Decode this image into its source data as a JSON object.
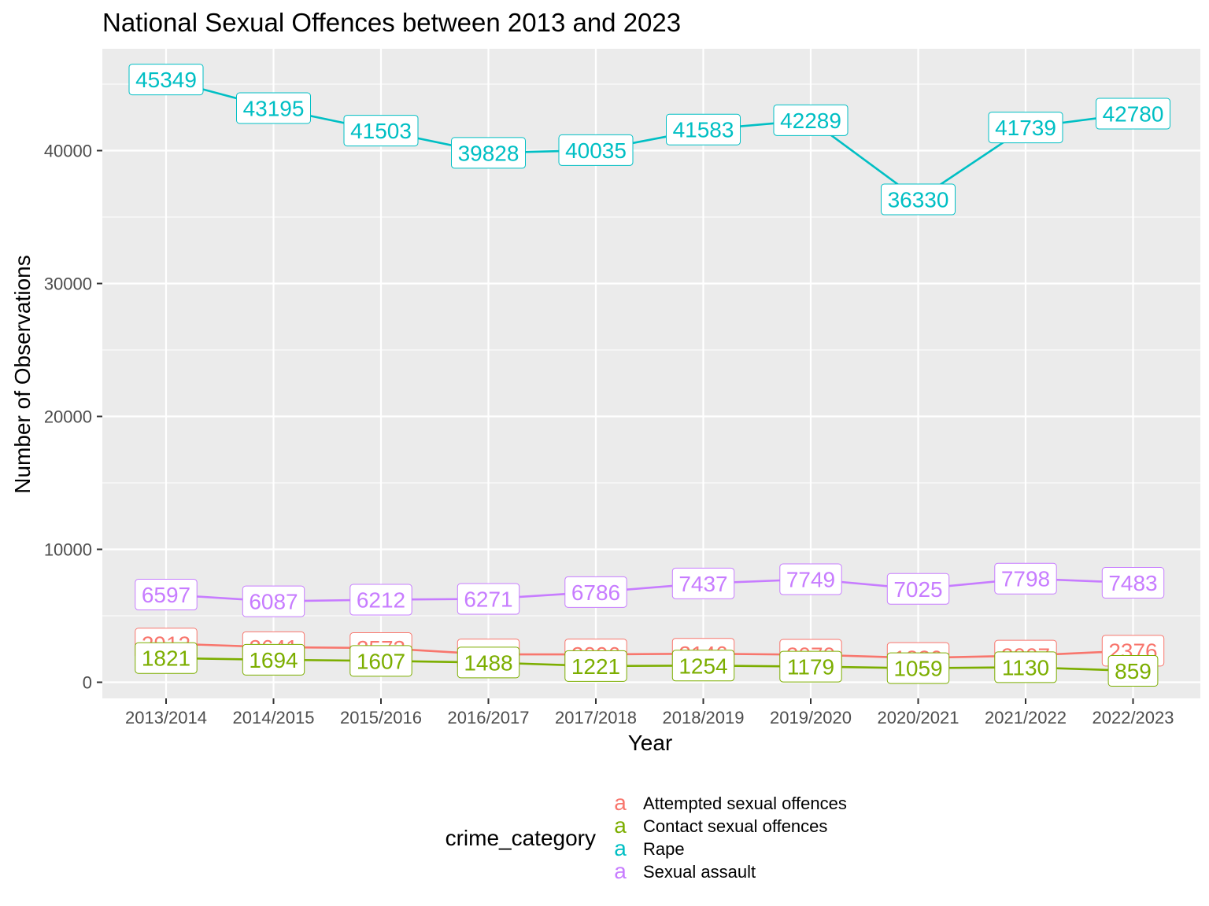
{
  "chart_data": {
    "type": "line",
    "title": "National Sexual Offences between 2013 and 2023",
    "xlabel": "Year",
    "ylabel": "Number of Observations",
    "categories": [
      "2013/2014",
      "2014/2015",
      "2015/2016",
      "2016/2017",
      "2017/2018",
      "2018/2019",
      "2019/2020",
      "2020/2021",
      "2021/2022",
      "2022/2023"
    ],
    "ylim": [
      -1200,
      47500
    ],
    "yticks": [
      0,
      10000,
      20000,
      30000,
      40000
    ],
    "ytick_labels": [
      "0",
      "10000",
      "20000",
      "30000",
      "40000"
    ],
    "grid": true,
    "legend": {
      "title": "crime_category",
      "position": "bottom",
      "key_glyph": "a"
    },
    "series": [
      {
        "name": "Attempted sexual offences",
        "color": "#F8766D",
        "values": [
          2912,
          2641,
          2573,
          2096,
          2096,
          2146,
          2070,
          1830,
          2007,
          2376
        ]
      },
      {
        "name": "Contact sexual offences",
        "color": "#7CAE00",
        "values": [
          1821,
          1694,
          1607,
          1488,
          1221,
          1254,
          1179,
          1059,
          1130,
          859
        ]
      },
      {
        "name": "Rape",
        "color": "#00BFC4",
        "values": [
          45349,
          43195,
          41503,
          39828,
          40035,
          41583,
          42289,
          36330,
          41739,
          42780
        ]
      },
      {
        "name": "Sexual assault",
        "color": "#C77CFF",
        "values": [
          6597,
          6087,
          6212,
          6271,
          6786,
          7437,
          7749,
          7025,
          7798,
          7483
        ]
      }
    ]
  }
}
